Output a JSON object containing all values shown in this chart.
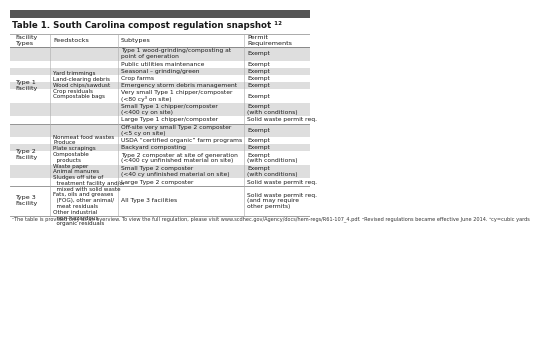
{
  "title": "Table 1. South Carolina compost regulation snapshot ¹²",
  "header_bg": "#555555",
  "col_headers": [
    "Facility\nTypes",
    "Feedstocks",
    "Subtypes",
    "Permit\nRequirements"
  ],
  "type1_label": "Type 1\nFacility",
  "type1_feedstocks": "Yard trimmings\nLand-clearing debris\nWood chips/sawdust\nCrop residuals\nCompostable bags",
  "type1_rows": [
    [
      "Type 1 wood-grinding/composting at\npoint of generation",
      "Exempt"
    ],
    [
      "Public utilities maintenance",
      "Exempt"
    ],
    [
      "Seasonal – grinding/green",
      "Exempt"
    ],
    [
      "Crop farms",
      "Exempt"
    ],
    [
      "Emergency storm debris management",
      "Exempt"
    ],
    [
      "Very small Type 1 chipper/composter\n(<80 cy³ on site)",
      "Exempt"
    ],
    [
      "Small Type 1 chipper/composter\n(<400 cy on site)",
      "Exempt\n(with conditions)"
    ],
    [
      "Large Type 1 chipper/composter",
      "Solid waste permit req."
    ]
  ],
  "type1_shaded": [
    0,
    2,
    4,
    6
  ],
  "type2_label": "Type 2\nFacility",
  "type2_feedstocks": "Nonmeat food wastes\nProduce\nPlate scrapings\nCompostable\n  products\nWaste paper\nAnimal manures",
  "type2_rows": [
    [
      "Off-site very small Type 2 composter\n(<5 cy on site)",
      "Exempt"
    ],
    [
      "USDA “certified organic” farm programs",
      "Exempt"
    ],
    [
      "Backyard composting",
      "Exempt"
    ],
    [
      "Type 2 composter at site of generation\n(<400 cy unfinished material on site)",
      "Exempt\n(with conditions)"
    ],
    [
      "Small Type 2 composter\n(<40 cy unfinished material on site)",
      "Exempt\n(with conditions)"
    ],
    [
      "Large Type 2 composter",
      "Solid waste permit req."
    ]
  ],
  "type2_shaded": [
    0,
    2,
    4
  ],
  "type3_label": "Type 3\nFacility",
  "type3_feedstocks": "Sludges off site of\n  treatment facility and/or\n  mixed with solid waste\nFats, oils and greases\n  (FOG), other animal/\n  meat residuals\nOther industrial\n  non-hazardous\n  organic residuals",
  "type3_rows": [
    [
      "All Type 3 facilities",
      "Solid waste permit req.\n(and may require\nother permits)"
    ]
  ],
  "type3_shaded": [],
  "footnote": "¹The table is provided only as an overview. To view the full regulation, please visit www.scdhec.gov/Agency/docs/hem-regs/R61-107_4.pdf. ²Revised regulations became effective June 2014. ³cy=cubic yards",
  "shaded_color": "#dedede",
  "white_color": "#ffffff",
  "text_color": "#1a1a1a",
  "sep_color": "#999999",
  "font_size": 4.6,
  "footnote_size": 3.6
}
